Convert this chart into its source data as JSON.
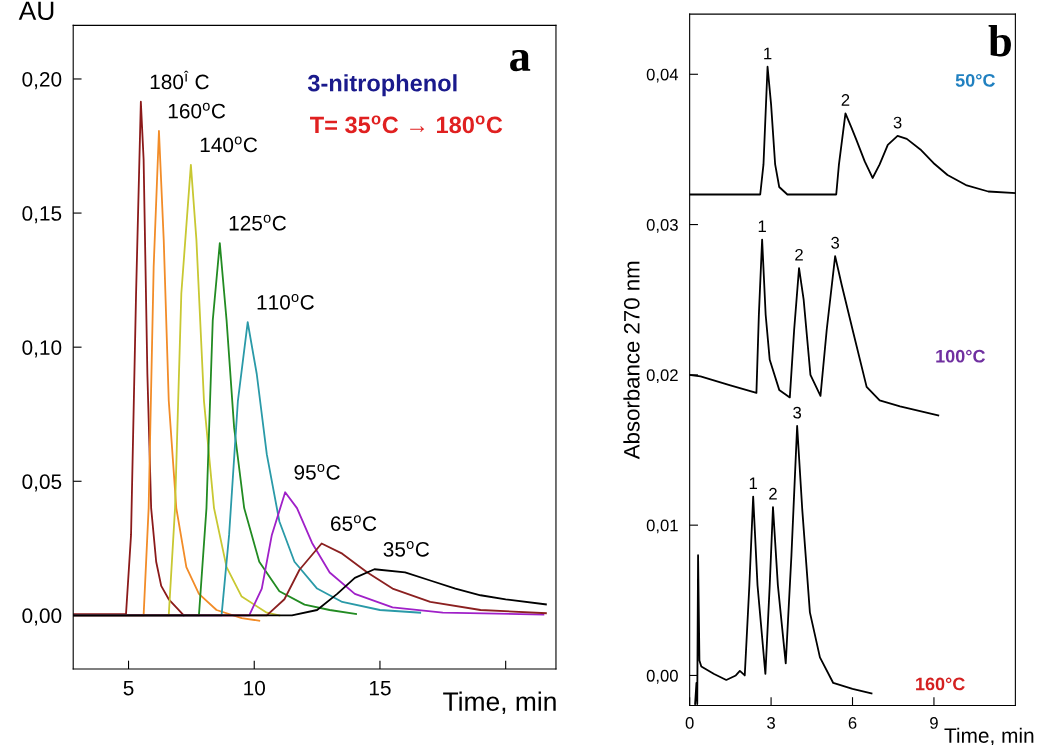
{
  "chart_data": [
    {
      "type": "line",
      "ylabel": "AU",
      "xlabel": "Time, min",
      "xlim": [
        2.8,
        22
      ],
      "xticks": [
        5,
        10,
        15,
        {
          "value": 20,
          "label": null
        }
      ],
      "ylim": [
        -0.02,
        0.22
      ],
      "yticks": [
        {
          "value": 0,
          "label": "0,00"
        },
        {
          "value": 0.05,
          "label": "0,05"
        },
        {
          "value": 0.1,
          "label": "0,10"
        },
        {
          "value": 0.15,
          "label": "0,15"
        },
        {
          "value": 0.2,
          "label": "0,20"
        }
      ],
      "grid": false,
      "marker": "none",
      "line_style": "solid",
      "annotations": [
        "a",
        "3-nitrophenol",
        "T= 35$^{o}$C → 180$^{o}$C"
      ],
      "series": [
        {
          "name": "180$^{î}$ C",
          "color": "#8b1a1a",
          "x": [
            2.8,
            4.9,
            5.1,
            5.3,
            5.49,
            5.6,
            5.75,
            5.9,
            6.1,
            6.3,
            6.6,
            6.9,
            7.2
          ],
          "values": [
            0.0005,
            0.0005,
            0.03,
            0.12,
            0.1915,
            0.17,
            0.09,
            0.04,
            0.02,
            0.011,
            0.006,
            0.003,
            0.0
          ]
        },
        {
          "name": "160$^{o}$C",
          "color": "#f28c28",
          "x": [
            2.8,
            5.6,
            5.8,
            6.0,
            6.21,
            6.4,
            6.6,
            6.9,
            7.3,
            7.8,
            8.5,
            9.5,
            10.2
          ],
          "values": [
            0,
            0,
            0.04,
            0.13,
            0.1806,
            0.14,
            0.08,
            0.04,
            0.018,
            0.008,
            0.002,
            -0.001,
            -0.002
          ]
        },
        {
          "name": "140$^{o}$C",
          "color": "#c8c832",
          "x": [
            2.8,
            6.6,
            6.85,
            7.1,
            7.48,
            7.7,
            8.0,
            8.4,
            8.9,
            9.5,
            10.5,
            11.0
          ],
          "values": [
            0,
            0,
            0.04,
            0.12,
            0.168,
            0.14,
            0.08,
            0.04,
            0.018,
            0.007,
            0.001,
            0
          ]
        },
        {
          "name": "125$^{o}$C",
          "color": "#228b22",
          "x": [
            2.8,
            7.8,
            8.1,
            8.35,
            8.63,
            8.9,
            9.2,
            9.6,
            10.2,
            11.0,
            12.0,
            13.0,
            14.05
          ],
          "values": [
            0,
            0,
            0.04,
            0.11,
            0.1388,
            0.11,
            0.07,
            0.04,
            0.02,
            0.009,
            0.004,
            0.002,
            0.0005
          ]
        },
        {
          "name": "110$^{o}$C",
          "color": "#2a9aa8",
          "x": [
            2.8,
            8.7,
            9.0,
            9.35,
            9.74,
            10.1,
            10.5,
            11.0,
            11.6,
            12.5,
            13.5,
            15.0,
            16.6
          ],
          "values": [
            0,
            0,
            0.03,
            0.08,
            0.1093,
            0.09,
            0.06,
            0.035,
            0.02,
            0.01,
            0.005,
            0.002,
            0.001
          ]
        },
        {
          "name": "95$^{o}$C",
          "color": "#a020c8",
          "x": [
            2.8,
            9.8,
            10.3,
            10.7,
            11.23,
            11.7,
            12.3,
            13.0,
            14.0,
            15.5,
            17.5,
            21.5
          ],
          "values": [
            0,
            0,
            0.01,
            0.03,
            0.0459,
            0.04,
            0.027,
            0.016,
            0.008,
            0.003,
            0.001,
            0.0003
          ]
        },
        {
          "name": "65$^{o}$C",
          "color": "#8b2020",
          "x": [
            2.8,
            10.5,
            11.2,
            11.8,
            12.68,
            13.5,
            14.5,
            15.5,
            17.0,
            19.0,
            21.6
          ],
          "values": [
            0,
            0,
            0.006,
            0.017,
            0.0268,
            0.023,
            0.016,
            0.01,
            0.005,
            0.002,
            0.0008
          ]
        },
        {
          "name": "35$^{o}$C",
          "color": "#000000",
          "x": [
            2.8,
            11.5,
            12.5,
            13.3,
            14.0,
            14.78,
            16.0,
            17.0,
            18.0,
            19.0,
            20.0,
            21.6
          ],
          "values": [
            0,
            0,
            0.002,
            0.008,
            0.014,
            0.0172,
            0.016,
            0.013,
            0.01,
            0.0075,
            0.006,
            0.0041
          ]
        }
      ]
    },
    {
      "type": "line",
      "ylabel": "Absorbance 270 nm",
      "xlabel": "Time, min",
      "xlim": [
        0,
        12
      ],
      "xticks": [
        0,
        3,
        6,
        9
      ],
      "ylim": [
        -0.002,
        0.044
      ],
      "yticks": [
        {
          "value": 0,
          "label": "0,00"
        },
        {
          "value": 0.01,
          "label": "0,01"
        },
        {
          "value": 0.02,
          "label": "0,02"
        },
        {
          "value": 0.03,
          "label": "0,03"
        },
        {
          "value": 0.04,
          "label": "0,04"
        }
      ],
      "grid": false,
      "marker": "none",
      "line_style": "solid",
      "annotations": [
        "b",
        "50°C",
        "100°C",
        "160°C",
        {
          "text": "1",
          "x": 2.87,
          "y": 0.0405
        },
        {
          "text": "2",
          "x": 5.74,
          "y": 0.0374
        },
        {
          "text": "3",
          "x": 7.66,
          "y": 0.0359
        },
        {
          "text": "1",
          "x": 2.67,
          "y": 0.029
        },
        {
          "text": "2",
          "x": 4.03,
          "y": 0.0271
        },
        {
          "text": "3",
          "x": 5.36,
          "y": 0.0279
        },
        {
          "text": "1",
          "x": 2.34,
          "y": 0.0119
        },
        {
          "text": "2",
          "x": 3.07,
          "y": 0.0112
        },
        {
          "text": "3",
          "x": 3.96,
          "y": 0.0166
        }
      ],
      "series": [
        {
          "color": "#000000",
          "x": [
            0,
            2.6,
            2.72,
            2.87,
            3.0,
            3.15,
            3.3,
            3.6,
            5.4,
            5.5,
            5.74,
            5.95,
            6.15,
            6.45,
            6.74,
            7.0,
            7.3,
            7.66,
            8.0,
            8.5,
            8.98,
            9.5,
            10.21,
            11.0,
            12.0
          ],
          "values": [
            0.032,
            0.032,
            0.034,
            0.0405,
            0.038,
            0.034,
            0.0325,
            0.032,
            0.032,
            0.034,
            0.0374,
            0.0365,
            0.0356,
            0.0342,
            0.0331,
            0.034,
            0.0353,
            0.0359,
            0.0357,
            0.035,
            0.0341,
            0.0333,
            0.0326,
            0.0322,
            0.0321
          ]
        },
        {
          "color": "#000000",
          "x": [
            0,
            0.4,
            1.5,
            2.46,
            2.55,
            2.67,
            2.8,
            2.95,
            3.3,
            3.69,
            3.85,
            4.03,
            4.2,
            4.45,
            4.82,
            5.05,
            5.36,
            5.6,
            6.03,
            6.52,
            7.0,
            7.75,
            9.16
          ],
          "values": [
            0.02,
            0.0199,
            0.0193,
            0.0188,
            0.024,
            0.029,
            0.024,
            0.021,
            0.019,
            0.0185,
            0.023,
            0.0271,
            0.025,
            0.02,
            0.0186,
            0.023,
            0.0279,
            0.026,
            0.0228,
            0.0192,
            0.0183,
            0.0179,
            0.0173
          ]
        },
        {
          "color": "#000000",
          "x": [
            0.2,
            0.25,
            0.28,
            0.31,
            0.36,
            0.43,
            0.9,
            1.35,
            1.7,
            1.85,
            2.03,
            2.2,
            2.34,
            2.5,
            2.79,
            2.95,
            3.07,
            3.25,
            3.54,
            3.75,
            3.96,
            4.15,
            4.43,
            4.8,
            5.29,
            6.0,
            6.7
          ],
          "values": [
            -0.0019,
            -0.0005,
            -0.0019,
            0.008,
            0.001,
            0.0006,
            0.0001,
            -0.0003,
            0.0,
            0.0003,
            0.0,
            0.006,
            0.0119,
            0.006,
            0.0001,
            0.006,
            0.0112,
            0.006,
            0.0008,
            0.008,
            0.0166,
            0.011,
            0.0042,
            0.0012,
            -0.0005,
            -0.0009,
            -0.0012
          ]
        }
      ]
    }
  ]
}
